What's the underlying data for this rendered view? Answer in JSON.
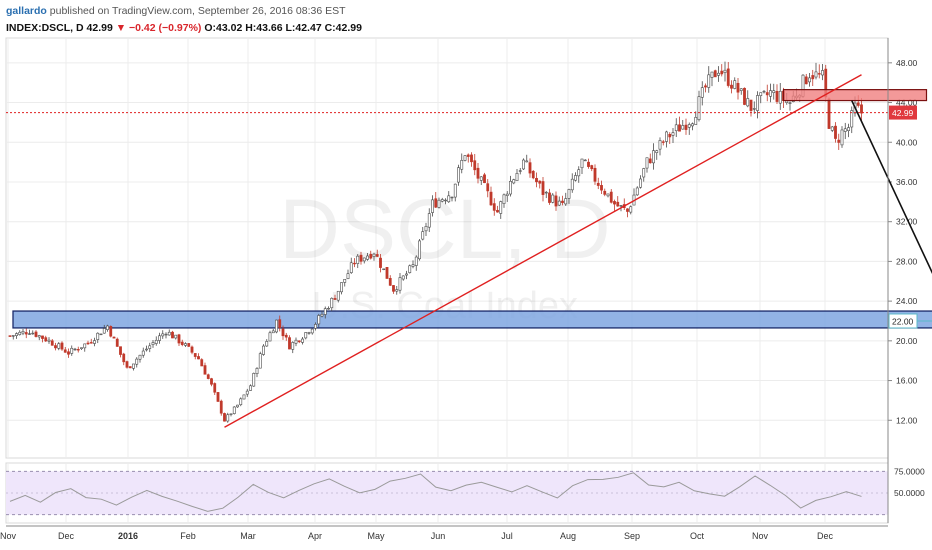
{
  "header": {
    "author": "gallardo",
    "published": "published on TradingView.com, September 26, 2016 08:36 EST",
    "symbol": "INDEX:DSCL, D",
    "last": "42.99",
    "change": "▼ −0.42 (−0.97%)",
    "ohlc": "O:43.02 H:43.66 L:42.47 C:42.99"
  },
  "watermark": {
    "symbol": "DSCL, D",
    "name": "U.S. Coal Index"
  },
  "colors": {
    "up": "#4a4a4a",
    "down": "#c0392b",
    "trendline": "#e02020",
    "price_line": "#e02020",
    "resistance_box": "#f08080",
    "support_box": "#7fa6e0",
    "rsi_band": "#efe6fb",
    "rsi_line": "#9a9a9a"
  },
  "chart_data": {
    "type": "candlestick",
    "x_tick_labels": [
      "Nov",
      "Dec",
      "2016",
      "Feb",
      "Mar",
      "Apr",
      "May",
      "Jun",
      "Jul",
      "Aug",
      "Sep",
      "Oct",
      "Nov",
      "Dec"
    ],
    "y_ticks": [
      12.0,
      16.0,
      20.0,
      24.0,
      28.0,
      32.0,
      36.0,
      40.0,
      44.0,
      48.0
    ],
    "y_tick_labels": [
      "12.00",
      "16.00",
      "20.00",
      "24.00",
      "28.00",
      "32.00",
      "36.00",
      "40.00",
      "44.00",
      "48.00"
    ],
    "ylim": [
      8.2,
      50.5
    ],
    "price_marker": {
      "value": 42.99,
      "label": "42.99"
    },
    "support_marker": {
      "value": 22.0,
      "label": "22.00"
    },
    "price_path": [
      [
        0,
        20.5
      ],
      [
        6,
        21
      ],
      [
        12,
        20
      ],
      [
        18,
        18.8
      ],
      [
        24,
        19.8
      ],
      [
        30,
        21.5
      ],
      [
        36,
        17.2
      ],
      [
        42,
        19.2
      ],
      [
        48,
        21
      ],
      [
        54,
        19.5
      ],
      [
        58,
        18.2
      ],
      [
        62,
        15.5
      ],
      [
        66,
        12
      ],
      [
        70,
        13.5
      ],
      [
        74,
        15.5
      ],
      [
        78,
        19.5
      ],
      [
        82,
        22
      ],
      [
        86,
        19.5
      ],
      [
        90,
        20.5
      ],
      [
        94,
        21.8
      ],
      [
        100,
        24.5
      ],
      [
        106,
        28
      ],
      [
        112,
        29
      ],
      [
        118,
        25.2
      ],
      [
        124,
        27.5
      ],
      [
        130,
        33.8
      ],
      [
        136,
        35
      ],
      [
        140,
        39
      ],
      [
        144,
        36.5
      ],
      [
        150,
        33
      ],
      [
        154,
        36
      ],
      [
        158,
        38
      ],
      [
        164,
        35
      ],
      [
        170,
        33.5
      ],
      [
        176,
        38
      ],
      [
        182,
        35.5
      ],
      [
        186,
        33.8
      ],
      [
        190,
        33
      ],
      [
        196,
        38
      ],
      [
        202,
        40.5
      ],
      [
        206,
        41.5
      ],
      [
        210,
        42.5
      ],
      [
        214,
        45.5
      ],
      [
        218,
        47.5
      ],
      [
        222,
        46
      ],
      [
        228,
        43.5
      ],
      [
        234,
        45
      ],
      [
        240,
        44
      ],
      [
        246,
        47
      ],
      [
        250,
        46.5
      ],
      [
        252,
        42
      ],
      [
        254,
        40
      ],
      [
        256,
        41
      ],
      [
        258,
        41.5
      ],
      [
        260,
        43.5
      ],
      [
        262,
        43
      ]
    ],
    "series_segments": [
      {
        "name": "",
        "type": "trendline",
        "start": [
          66,
          11.3
        ],
        "end": [
          262,
          46.8
        ]
      },
      {
        "name": "",
        "type": "projection_arrow",
        "start": [
          259,
          44.2
        ],
        "end": [
          289,
          23.2
        ]
      }
    ],
    "annotations": [
      {
        "type": "zone",
        "label": "",
        "x_range": [
          238,
          282
        ],
        "y_range": [
          44.2,
          45.3
        ]
      },
      {
        "type": "zone",
        "label": "",
        "x_range": [
          0,
          319
        ],
        "y_range": [
          21.3,
          23.0
        ]
      }
    ],
    "rsi": {
      "y_tick_labels": [
        "75.0000",
        "50.0000"
      ],
      "upper": 75,
      "lower": 25,
      "values": [
        42,
        46,
        40,
        50,
        54,
        46,
        42,
        38,
        44,
        52,
        48,
        40,
        36,
        30,
        34,
        46,
        58,
        50,
        44,
        52,
        60,
        66,
        56,
        50,
        54,
        62,
        66,
        70,
        58,
        52,
        60,
        64,
        56,
        50,
        60,
        52,
        46,
        58,
        64,
        66,
        70,
        72,
        60,
        56,
        62,
        54,
        50,
        46,
        58,
        68,
        60,
        48,
        34,
        40,
        46,
        52,
        48
      ]
    }
  }
}
